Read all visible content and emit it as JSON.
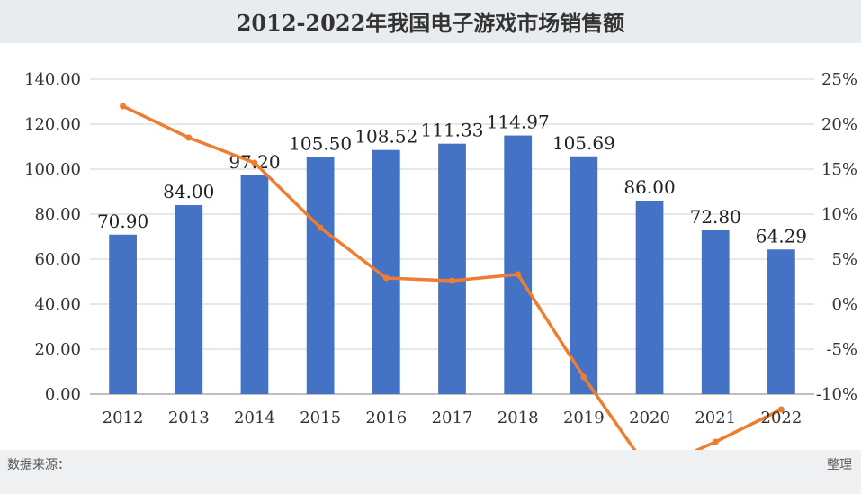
{
  "title": "2012-2022年我国电子游戏市场销售额",
  "source_left": "数据来源：",
  "source_right": "整理",
  "chart_data": {
    "type": "bar",
    "categories": [
      "2012",
      "2013",
      "2014",
      "2015",
      "2016",
      "2017",
      "2018",
      "2019",
      "2020",
      "2021",
      "2022"
    ],
    "series": [
      {
        "name": "",
        "kind": "bar",
        "axis": "left",
        "values": [
          70.9,
          84.0,
          97.2,
          105.5,
          108.52,
          111.33,
          114.97,
          105.69,
          86.0,
          72.8,
          64.29
        ]
      },
      {
        "name": "",
        "kind": "line",
        "axis": "right",
        "values": [
          22.0,
          18.5,
          15.7,
          8.5,
          2.9,
          2.6,
          3.3,
          -8.1,
          -18.6,
          -15.3,
          -11.7
        ]
      }
    ],
    "left_axis": {
      "ticks": [
        "0.00",
        "20.00",
        "40.00",
        "60.00",
        "80.00",
        "100.00",
        "120.00",
        "140.00"
      ],
      "ylim": [
        0,
        140
      ]
    },
    "right_axis": {
      "ticks": [
        "-10%",
        "-5%",
        "0%",
        "5%",
        "10%",
        "15%",
        "20%",
        "25%"
      ],
      "ylim": [
        -10,
        25
      ]
    },
    "grid": true,
    "legend": "bottom",
    "colors": {
      "bar": "#4472c4",
      "line": "#ed7d31"
    }
  }
}
